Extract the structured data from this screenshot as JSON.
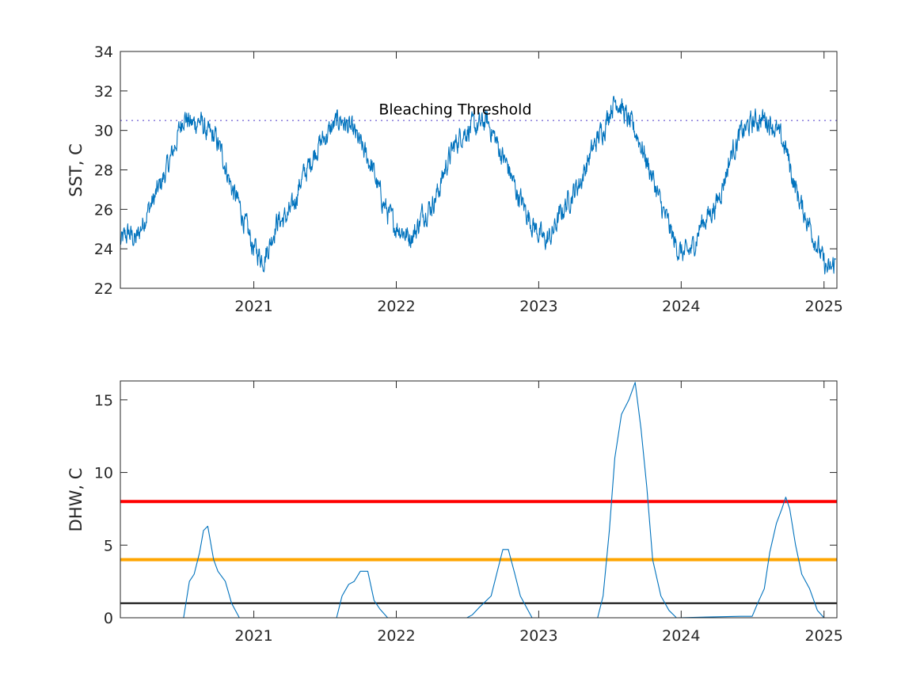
{
  "chart_data": [
    {
      "type": "line",
      "ylabel": "SST, C",
      "ylim": [
        22,
        34
      ],
      "yticks": [
        22,
        24,
        26,
        28,
        30,
        32,
        34
      ],
      "xlim": [
        "2020-01-25",
        "2025-02-03"
      ],
      "xtick_labels": [
        "2021",
        "2022",
        "2023",
        "2024",
        "2025"
      ],
      "grid": false,
      "series": [
        {
          "color": "#0072BD",
          "x": [
            "2020-01-25",
            "2020-02-15",
            "2020-03-05",
            "2020-04-01",
            "2020-04-20",
            "2020-05-10",
            "2020-06-01",
            "2020-06-20",
            "2020-07-05",
            "2020-07-25",
            "2020-08-15",
            "2020-09-05",
            "2020-09-25",
            "2020-10-15",
            "2020-11-05",
            "2020-11-25",
            "2020-12-10",
            "2020-12-28",
            "2021-01-10",
            "2021-01-25",
            "2021-02-10",
            "2021-03-01",
            "2021-03-20",
            "2021-04-10",
            "2021-04-30",
            "2021-05-20",
            "2021-06-10",
            "2021-06-30",
            "2021-07-20",
            "2021-08-10",
            "2021-08-30",
            "2021-09-20",
            "2021-10-10",
            "2021-10-30",
            "2021-11-20",
            "2021-12-10",
            "2021-12-28",
            "2022-01-15",
            "2022-02-01",
            "2022-02-20",
            "2022-03-10",
            "2022-04-01",
            "2022-04-20",
            "2022-05-10",
            "2022-06-01",
            "2022-06-20",
            "2022-07-10",
            "2022-08-01",
            "2022-08-20",
            "2022-09-05",
            "2022-09-25",
            "2022-10-15",
            "2022-11-05",
            "2022-11-25",
            "2022-12-15",
            "2023-01-01",
            "2023-01-15",
            "2023-02-01",
            "2023-02-20",
            "2023-03-10",
            "2023-04-01",
            "2023-04-20",
            "2023-05-10",
            "2023-06-01",
            "2023-06-20",
            "2023-07-05",
            "2023-07-20",
            "2023-08-05",
            "2023-08-20",
            "2023-09-10",
            "2023-09-30",
            "2023-10-20",
            "2023-11-10",
            "2023-11-30",
            "2023-12-15",
            "2024-01-01",
            "2024-01-15",
            "2024-02-01",
            "2024-02-20",
            "2024-03-10",
            "2024-04-01",
            "2024-04-20",
            "2024-05-10",
            "2024-06-01",
            "2024-06-20",
            "2024-07-10",
            "2024-08-01",
            "2024-08-20",
            "2024-09-05",
            "2024-09-25",
            "2024-10-15",
            "2024-11-05",
            "2024-11-25",
            "2024-12-15",
            "2025-01-01",
            "2025-01-15",
            "2025-02-01"
          ],
          "y": [
            24.3,
            24.8,
            24.4,
            25.8,
            26.5,
            27.4,
            28.5,
            29.7,
            30.8,
            30.3,
            30.5,
            29.8,
            29.6,
            28.6,
            27.1,
            26.2,
            25.2,
            24.2,
            23.8,
            23.5,
            24.2,
            25.4,
            25.5,
            26.0,
            27.4,
            28.1,
            29.1,
            29.6,
            30.1,
            30.6,
            30.2,
            29.7,
            28.9,
            28.2,
            26.8,
            25.8,
            25.2,
            25.0,
            24.6,
            24.9,
            25.8,
            26.2,
            27.0,
            28.3,
            29.3,
            29.9,
            30.1,
            30.2,
            30.5,
            29.9,
            28.9,
            28.1,
            26.9,
            26.1,
            25.3,
            24.8,
            24.4,
            24.6,
            25.5,
            26.2,
            26.9,
            27.5,
            28.6,
            29.6,
            30.3,
            31.2,
            31.6,
            31.0,
            30.4,
            29.8,
            28.7,
            27.6,
            26.2,
            25.2,
            24.3,
            23.8,
            23.7,
            24.1,
            25.2,
            25.7,
            26.3,
            27.5,
            28.9,
            29.8,
            30.2,
            30.5,
            30.6,
            30.4,
            29.8,
            29.1,
            27.4,
            26.1,
            25.2,
            24.2,
            23.2,
            22.8,
            23.4
          ]
        }
      ],
      "reference_lines": [
        {
          "y": 30.5,
          "style": "dotted",
          "color": "#7E6FD8"
        }
      ],
      "annotations": [
        {
          "text": "Bleaching Threshold",
          "x": "2022-06-01",
          "y": 31.1
        }
      ]
    },
    {
      "type": "line",
      "ylabel": "DHW, C",
      "ylim": [
        0,
        16.3
      ],
      "yticks": [
        0,
        5,
        10,
        15
      ],
      "xlim": [
        "2020-01-25",
        "2025-02-03"
      ],
      "xtick_labels": [
        "2021",
        "2022",
        "2023",
        "2024",
        "2025"
      ],
      "grid": false,
      "series": [
        {
          "color": "#0072BD",
          "x": [
            "2020-01-25",
            "2020-07-05",
            "2020-07-20",
            "2020-08-01",
            "2020-08-15",
            "2020-08-25",
            "2020-09-05",
            "2020-09-20",
            "2020-10-01",
            "2020-10-20",
            "2020-11-05",
            "2020-11-25",
            "2020-12-10",
            "2021-08-01",
            "2021-08-15",
            "2021-09-01",
            "2021-09-15",
            "2021-10-01",
            "2021-10-20",
            "2021-11-05",
            "2021-11-20",
            "2021-12-10",
            "2022-01-01",
            "2022-07-01",
            "2022-07-15",
            "2022-08-01",
            "2022-09-01",
            "2022-09-15",
            "2022-10-01",
            "2022-10-15",
            "2022-11-01",
            "2022-11-15",
            "2022-12-01",
            "2022-12-15",
            "2023-06-01",
            "2023-06-15",
            "2023-07-01",
            "2023-07-15",
            "2023-08-01",
            "2023-08-20",
            "2023-09-05",
            "2023-09-20",
            "2023-10-05",
            "2023-10-20",
            "2023-11-10",
            "2023-12-01",
            "2023-12-20",
            "2024-06-01",
            "2024-07-01",
            "2024-07-15",
            "2024-08-01",
            "2024-08-15",
            "2024-09-01",
            "2024-09-15",
            "2024-09-25",
            "2024-10-05",
            "2024-10-20",
            "2024-11-05",
            "2024-11-25",
            "2024-12-15",
            "2025-01-01",
            "2025-01-20",
            "2025-02-01"
          ],
          "y": [
            0,
            0,
            2.5,
            3.0,
            4.5,
            6.0,
            6.3,
            4.0,
            3.2,
            2.5,
            1.0,
            0,
            0,
            0,
            1.5,
            2.3,
            2.5,
            3.2,
            3.2,
            1.2,
            0.6,
            0,
            0,
            0,
            0.2,
            0.7,
            1.5,
            3.0,
            4.7,
            4.7,
            3.0,
            1.5,
            0.7,
            0,
            0,
            1.5,
            6.0,
            11.0,
            14.0,
            15.0,
            16.2,
            13.0,
            9.0,
            4.0,
            1.5,
            0.5,
            0,
            0.1,
            0.1,
            1.0,
            2.0,
            4.5,
            6.5,
            7.5,
            8.3,
            7.5,
            5.0,
            3.0,
            2.0,
            0.5,
            0,
            0,
            0
          ]
        }
      ],
      "reference_lines": [
        {
          "y": 8,
          "style": "solid",
          "color": "#FF0000"
        },
        {
          "y": 4,
          "style": "solid",
          "color": "#FFA500"
        },
        {
          "y": 1,
          "style": "solid",
          "color": "#000000"
        }
      ]
    }
  ]
}
